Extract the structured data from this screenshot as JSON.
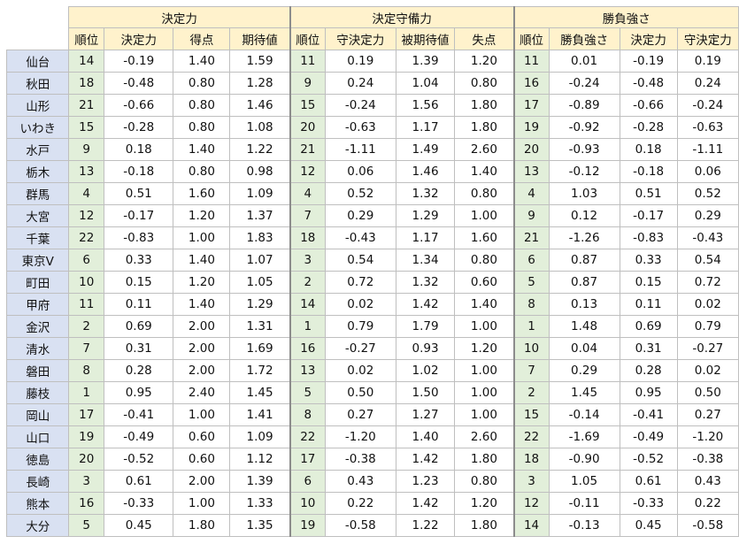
{
  "headers": {
    "groups": [
      "決定力",
      "決定守備力",
      "勝負強さ"
    ],
    "sub": [
      [
        "順位",
        "決定力",
        "得点",
        "期待値"
      ],
      [
        "順位",
        "守決定力",
        "被期待値",
        "失点"
      ],
      [
        "順位",
        "勝負強さ",
        "決定力",
        "守決定力"
      ]
    ]
  },
  "rows": [
    {
      "team": "仙台",
      "cells": [
        "14",
        "-0.19",
        "1.40",
        "1.59",
        "11",
        "0.19",
        "1.39",
        "1.20",
        "11",
        "0.01",
        "-0.19",
        "0.19"
      ]
    },
    {
      "team": "秋田",
      "cells": [
        "18",
        "-0.48",
        "0.80",
        "1.28",
        "9",
        "0.24",
        "1.04",
        "0.80",
        "16",
        "-0.24",
        "-0.48",
        "0.24"
      ]
    },
    {
      "team": "山形",
      "cells": [
        "21",
        "-0.66",
        "0.80",
        "1.46",
        "15",
        "-0.24",
        "1.56",
        "1.80",
        "17",
        "-0.89",
        "-0.66",
        "-0.24"
      ]
    },
    {
      "team": "いわき",
      "cells": [
        "15",
        "-0.28",
        "0.80",
        "1.08",
        "20",
        "-0.63",
        "1.17",
        "1.80",
        "19",
        "-0.92",
        "-0.28",
        "-0.63"
      ]
    },
    {
      "team": "水戸",
      "cells": [
        "9",
        "0.18",
        "1.40",
        "1.22",
        "21",
        "-1.11",
        "1.49",
        "2.60",
        "20",
        "-0.93",
        "0.18",
        "-1.11"
      ]
    },
    {
      "team": "栃木",
      "cells": [
        "13",
        "-0.18",
        "0.80",
        "0.98",
        "12",
        "0.06",
        "1.46",
        "1.40",
        "13",
        "-0.12",
        "-0.18",
        "0.06"
      ]
    },
    {
      "team": "群馬",
      "cells": [
        "4",
        "0.51",
        "1.60",
        "1.09",
        "4",
        "0.52",
        "1.32",
        "0.80",
        "4",
        "1.03",
        "0.51",
        "0.52"
      ]
    },
    {
      "team": "大宮",
      "cells": [
        "12",
        "-0.17",
        "1.20",
        "1.37",
        "7",
        "0.29",
        "1.29",
        "1.00",
        "9",
        "0.12",
        "-0.17",
        "0.29"
      ]
    },
    {
      "team": "千葉",
      "cells": [
        "22",
        "-0.83",
        "1.00",
        "1.83",
        "18",
        "-0.43",
        "1.17",
        "1.60",
        "21",
        "-1.26",
        "-0.83",
        "-0.43"
      ]
    },
    {
      "team": "東京V",
      "cells": [
        "6",
        "0.33",
        "1.40",
        "1.07",
        "3",
        "0.54",
        "1.34",
        "0.80",
        "6",
        "0.87",
        "0.33",
        "0.54"
      ]
    },
    {
      "team": "町田",
      "cells": [
        "10",
        "0.15",
        "1.20",
        "1.05",
        "2",
        "0.72",
        "1.32",
        "0.60",
        "5",
        "0.87",
        "0.15",
        "0.72"
      ]
    },
    {
      "team": "甲府",
      "cells": [
        "11",
        "0.11",
        "1.40",
        "1.29",
        "14",
        "0.02",
        "1.42",
        "1.40",
        "8",
        "0.13",
        "0.11",
        "0.02"
      ]
    },
    {
      "team": "金沢",
      "cells": [
        "2",
        "0.69",
        "2.00",
        "1.31",
        "1",
        "0.79",
        "1.79",
        "1.00",
        "1",
        "1.48",
        "0.69",
        "0.79"
      ]
    },
    {
      "team": "清水",
      "cells": [
        "7",
        "0.31",
        "2.00",
        "1.69",
        "16",
        "-0.27",
        "0.93",
        "1.20",
        "10",
        "0.04",
        "0.31",
        "-0.27"
      ]
    },
    {
      "team": "磐田",
      "cells": [
        "8",
        "0.28",
        "2.00",
        "1.72",
        "13",
        "0.02",
        "1.02",
        "1.00",
        "7",
        "0.29",
        "0.28",
        "0.02"
      ]
    },
    {
      "team": "藤枝",
      "cells": [
        "1",
        "0.95",
        "2.40",
        "1.45",
        "5",
        "0.50",
        "1.50",
        "1.00",
        "2",
        "1.45",
        "0.95",
        "0.50"
      ]
    },
    {
      "team": "岡山",
      "cells": [
        "17",
        "-0.41",
        "1.00",
        "1.41",
        "8",
        "0.27",
        "1.27",
        "1.00",
        "15",
        "-0.14",
        "-0.41",
        "0.27"
      ]
    },
    {
      "team": "山口",
      "cells": [
        "19",
        "-0.49",
        "0.60",
        "1.09",
        "22",
        "-1.20",
        "1.40",
        "2.60",
        "22",
        "-1.69",
        "-0.49",
        "-1.20"
      ]
    },
    {
      "team": "徳島",
      "cells": [
        "20",
        "-0.52",
        "0.60",
        "1.12",
        "17",
        "-0.38",
        "1.42",
        "1.80",
        "18",
        "-0.90",
        "-0.52",
        "-0.38"
      ]
    },
    {
      "team": "長崎",
      "cells": [
        "3",
        "0.61",
        "2.00",
        "1.39",
        "6",
        "0.43",
        "1.23",
        "0.80",
        "3",
        "1.05",
        "0.61",
        "0.43"
      ]
    },
    {
      "team": "熊本",
      "cells": [
        "16",
        "-0.33",
        "1.00",
        "1.33",
        "10",
        "0.22",
        "1.42",
        "1.20",
        "12",
        "-0.11",
        "-0.33",
        "0.22"
      ]
    },
    {
      "team": "大分",
      "cells": [
        "5",
        "0.45",
        "1.80",
        "1.35",
        "19",
        "-0.58",
        "1.22",
        "1.80",
        "14",
        "-0.13",
        "0.45",
        "-0.58"
      ]
    }
  ],
  "colors": {
    "header_fill": "#fff2cc",
    "team_fill": "#d9e1f2",
    "rank_fill": "#e2efda",
    "grid_line": "#bfbfbf",
    "group_separator": "#8c8c8c"
  }
}
